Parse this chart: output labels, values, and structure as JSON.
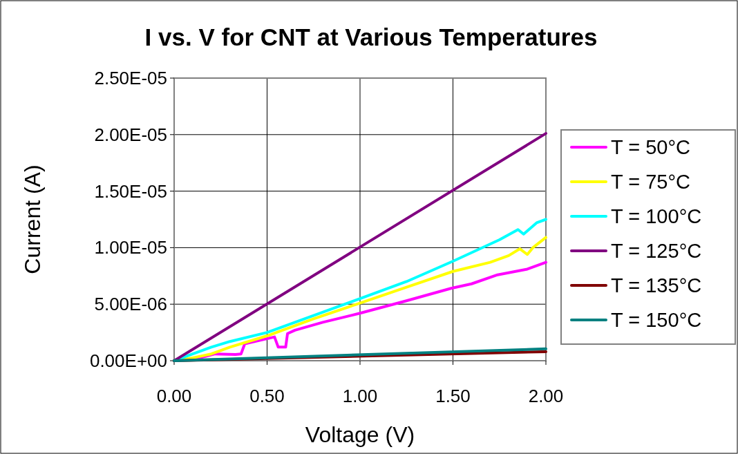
{
  "chart_data": {
    "type": "line",
    "title": "I vs. V for CNT at Various Temperatures",
    "xlabel": "Voltage (V)",
    "ylabel": "Current (A)",
    "xlim": [
      0,
      2
    ],
    "xticks": [
      {
        "value": 0,
        "label": "0.00"
      },
      {
        "value": 0.5,
        "label": "0.50"
      },
      {
        "value": 1,
        "label": "1.00"
      },
      {
        "value": 1.5,
        "label": "1.50"
      },
      {
        "value": 2,
        "label": "2.00"
      }
    ],
    "ylim": [
      0,
      2.5e-05
    ],
    "yticks": [
      {
        "value": 0,
        "label": "0.00E+00"
      },
      {
        "value": 5e-06,
        "label": "5.00E-06"
      },
      {
        "value": 1e-05,
        "label": "1.00E-05"
      },
      {
        "value": 1.5e-05,
        "label": "1.50E-05"
      },
      {
        "value": 2e-05,
        "label": "2.00E-05"
      },
      {
        "value": 2.5e-05,
        "label": "2.50E-05"
      }
    ],
    "grid": true,
    "legend": "right",
    "marker": "none",
    "line_style": "solid",
    "series": [
      {
        "name": "T = 50°C",
        "color": "#ff00ff",
        "x": [
          0,
          0.15,
          0.22,
          0.33,
          0.36,
          0.38,
          0.54,
          0.56,
          0.6,
          0.61,
          0.65,
          0.8,
          1.0,
          1.25,
          1.49,
          1.6,
          1.74,
          1.9,
          2.0
        ],
        "values": [
          0,
          3e-07,
          6e-07,
          5.5e-07,
          6e-07,
          1.5e-06,
          2.1e-06,
          1.2e-06,
          1.2e-06,
          2.4e-06,
          2.7e-06,
          3.4e-06,
          4.2e-06,
          5.3e-06,
          6.4e-06,
          6.8e-06,
          7.6e-06,
          8.1e-06,
          8.7e-06
        ]
      },
      {
        "name": "T = 75°C",
        "color": "#ffff00",
        "x": [
          0,
          0.1,
          0.2,
          0.3,
          0.5,
          0.75,
          1.0,
          1.25,
          1.5,
          1.7,
          1.8,
          1.86,
          1.9,
          1.93,
          2.0
        ],
        "values": [
          0,
          2.5e-07,
          6e-07,
          1.2e-06,
          2.2e-06,
          3.7e-06,
          5.1e-06,
          6.5e-06,
          7.9e-06,
          8.7e-06,
          9.3e-06,
          9.9e-06,
          9.4e-06,
          1e-05,
          1.09e-05
        ]
      },
      {
        "name": "T = 100°C",
        "color": "#00ffff",
        "x": [
          0,
          0.1,
          0.2,
          0.3,
          0.5,
          0.75,
          1.0,
          1.25,
          1.5,
          1.75,
          1.85,
          1.88,
          1.95,
          2.0
        ],
        "values": [
          0,
          6e-07,
          1.2e-06,
          1.7e-06,
          2.5e-06,
          4e-06,
          5.5e-06,
          7e-06,
          8.8e-06,
          1.07e-05,
          1.16e-05,
          1.12e-05,
          1.22e-05,
          1.25e-05
        ]
      },
      {
        "name": "T = 125°C",
        "color": "#800080",
        "x": [
          0,
          2.0
        ],
        "values": [
          0,
          2.01e-05
        ]
      },
      {
        "name": "T = 135°C",
        "color": "#800000",
        "x": [
          0,
          2.0
        ],
        "values": [
          0,
          8e-07
        ]
      },
      {
        "name": "T = 150°C",
        "color": "#008080",
        "x": [
          0,
          2.0
        ],
        "values": [
          0,
          1.05e-06
        ]
      }
    ]
  }
}
